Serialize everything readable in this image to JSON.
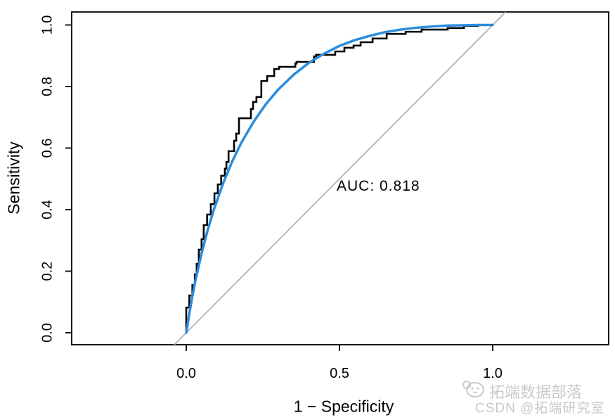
{
  "chart_data": {
    "type": "line",
    "title": "",
    "xlabel": "1 − Specificity",
    "ylabel": "Sensitivity",
    "grid": false,
    "legend": "none",
    "xlim": [
      0,
      1
    ],
    "ylim": [
      0,
      1
    ],
    "x_ticks": {
      "values": [
        0,
        0.5,
        1.0
      ],
      "labels": [
        "0.0",
        "0.5",
        "1.0"
      ]
    },
    "y_ticks": {
      "values": [
        0,
        0.2,
        0.4,
        0.6,
        0.8,
        1.0
      ],
      "labels": [
        "0.0",
        "0.2",
        "0.4",
        "0.6",
        "0.8",
        "1.0"
      ]
    },
    "annotation": {
      "text": "AUC: 0.818",
      "x": 0.49,
      "y": 0.47
    },
    "auc": 0.818,
    "colors": {
      "empirical": "#000000",
      "smooth": "#2b8cdc",
      "chance": "#ababab",
      "box": "#1a1a1a"
    },
    "series": [
      {
        "name": "empirical-roc",
        "style": "step",
        "color_key": "empirical",
        "points": [
          [
            0.0,
            0.0
          ],
          [
            0.0,
            0.041
          ],
          [
            0.01,
            0.082
          ],
          [
            0.02,
            0.121
          ],
          [
            0.028,
            0.155
          ],
          [
            0.034,
            0.19
          ],
          [
            0.041,
            0.224
          ],
          [
            0.05,
            0.27
          ],
          [
            0.057,
            0.304
          ],
          [
            0.068,
            0.35
          ],
          [
            0.08,
            0.384
          ],
          [
            0.092,
            0.418
          ],
          [
            0.103,
            0.453
          ],
          [
            0.114,
            0.482
          ],
          [
            0.126,
            0.51
          ],
          [
            0.131,
            0.533
          ],
          [
            0.138,
            0.555
          ],
          [
            0.138,
            0.59
          ],
          [
            0.156,
            0.59
          ],
          [
            0.163,
            0.624
          ],
          [
            0.172,
            0.647
          ],
          [
            0.183,
            0.697
          ],
          [
            0.211,
            0.697
          ],
          [
            0.218,
            0.727
          ],
          [
            0.229,
            0.75
          ],
          [
            0.236,
            0.766
          ],
          [
            0.245,
            0.766
          ],
          [
            0.245,
            0.807
          ],
          [
            0.264,
            0.818
          ],
          [
            0.287,
            0.834
          ],
          [
            0.303,
            0.857
          ],
          [
            0.356,
            0.864
          ],
          [
            0.36,
            0.875
          ],
          [
            0.417,
            0.88
          ],
          [
            0.424,
            0.898
          ],
          [
            0.486,
            0.903
          ],
          [
            0.516,
            0.914
          ],
          [
            0.546,
            0.926
          ],
          [
            0.569,
            0.933
          ],
          [
            0.608,
            0.944
          ],
          [
            0.654,
            0.956
          ],
          [
            0.716,
            0.971
          ],
          [
            0.768,
            0.978
          ],
          [
            0.853,
            0.985
          ],
          [
            0.906,
            0.99
          ],
          [
            0.952,
            0.997
          ],
          [
            0.991,
            1.0
          ],
          [
            1.0,
            1.0
          ]
        ]
      },
      {
        "name": "smooth-roc",
        "style": "smooth",
        "color_key": "smooth",
        "points": [
          [
            0.0,
            0.0
          ],
          [
            0.0005,
            0.003
          ],
          [
            0.002,
            0.012
          ],
          [
            0.005,
            0.031
          ],
          [
            0.01,
            0.062
          ],
          [
            0.02,
            0.119
          ],
          [
            0.03,
            0.17
          ],
          [
            0.05,
            0.258
          ],
          [
            0.07,
            0.334
          ],
          [
            0.09,
            0.4
          ],
          [
            0.12,
            0.485
          ],
          [
            0.15,
            0.557
          ],
          [
            0.18,
            0.618
          ],
          [
            0.22,
            0.686
          ],
          [
            0.26,
            0.743
          ],
          [
            0.3,
            0.79
          ],
          [
            0.35,
            0.838
          ],
          [
            0.4,
            0.877
          ],
          [
            0.45,
            0.907
          ],
          [
            0.5,
            0.932
          ],
          [
            0.55,
            0.951
          ],
          [
            0.6,
            0.965
          ],
          [
            0.65,
            0.977
          ],
          [
            0.7,
            0.985
          ],
          [
            0.75,
            0.991
          ],
          [
            0.8,
            0.995
          ],
          [
            0.85,
            0.998
          ],
          [
            0.9,
            0.999
          ],
          [
            0.95,
            1.0
          ],
          [
            1.0,
            1.0
          ]
        ]
      },
      {
        "name": "chance-line",
        "style": "diagonal",
        "color_key": "chance"
      }
    ]
  },
  "watermark": {
    "line1": "拓端数据部落",
    "line2": "CSDN @拓端研究室",
    "logo": "panda-chat-icon",
    "color": "#c9c9c9"
  }
}
